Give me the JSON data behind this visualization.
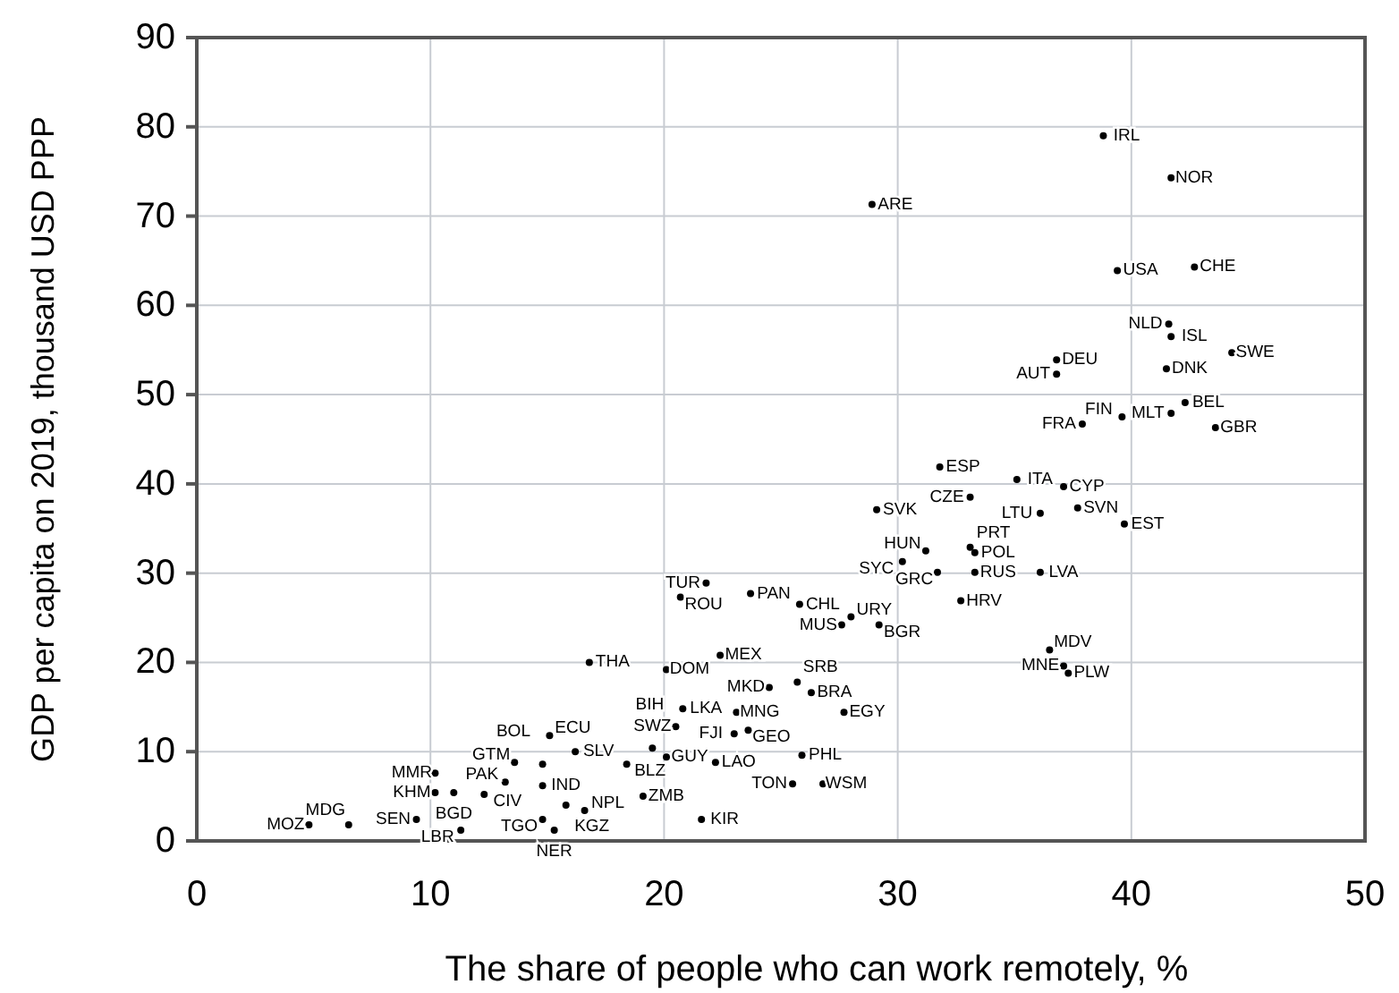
{
  "chart_data": {
    "type": "scatter",
    "xlabel": "The share of people who can work remotely, %",
    "ylabel": "GDP per capita on 2019, thousand USD PPP",
    "xlim": [
      0,
      50
    ],
    "xticks": [
      0,
      10,
      20,
      30,
      40,
      50
    ],
    "ylim": [
      0,
      90
    ],
    "yticks": [
      0,
      10,
      20,
      30,
      40,
      50,
      60,
      70,
      80,
      90
    ],
    "grid": true,
    "marker": "circle",
    "color": "#000000",
    "x": [
      38.8,
      41.7,
      28.9,
      39.4,
      42.7,
      41.6,
      41.7,
      44.3,
      41.5,
      36.8,
      36.8,
      42.3,
      41.7,
      43.6,
      39.6,
      37.9,
      31.8,
      33.1,
      35.1,
      37.1,
      36.1,
      37.7,
      39.7,
      29.1,
      31.2,
      33.1,
      33.3,
      30.2,
      31.7,
      33.3,
      36.1,
      32.7,
      37.1,
      37.3,
      36.5,
      21.8,
      20.7,
      23.7,
      25.8,
      28.0,
      27.6,
      29.2,
      16.8,
      20.1,
      22.4,
      24.5,
      25.7,
      26.3,
      20.8,
      23.1,
      27.7,
      20.5,
      23.6,
      23.0,
      15.1,
      16.2,
      13.6,
      14.8,
      18.4,
      19.5,
      20.1,
      22.2,
      25.9,
      25.5,
      26.8,
      10.2,
      13.2,
      14.8,
      10.2,
      11.0,
      12.3,
      15.8,
      19.1,
      16.6,
      9.4,
      11.3,
      14.8,
      15.3,
      4.8,
      6.5,
      21.6
    ],
    "values": [
      79.0,
      74.3,
      71.3,
      63.9,
      64.3,
      57.9,
      56.5,
      54.7,
      52.9,
      53.9,
      52.3,
      49.1,
      47.9,
      46.3,
      47.5,
      46.7,
      41.9,
      38.5,
      40.5,
      39.7,
      36.7,
      37.3,
      35.5,
      37.1,
      32.5,
      32.9,
      32.3,
      31.3,
      30.1,
      30.1,
      30.1,
      26.9,
      19.6,
      18.8,
      21.4,
      28.9,
      27.3,
      27.7,
      26.5,
      25.1,
      24.2,
      24.2,
      20.0,
      19.2,
      20.8,
      17.2,
      17.8,
      16.6,
      14.8,
      14.4,
      14.4,
      12.8,
      12.4,
      12.0,
      11.8,
      10.0,
      8.8,
      8.6,
      8.6,
      10.4,
      9.4,
      8.8,
      9.6,
      6.4,
      6.4,
      7.6,
      6.6,
      6.2,
      5.4,
      5.4,
      5.2,
      4.0,
      5.0,
      3.4,
      2.4,
      1.2,
      2.4,
      1.2,
      1.8,
      1.8,
      2.4
    ],
    "value_labels": [
      "IRL",
      "NOR",
      "ARE",
      "USA",
      "CHE",
      "NLD",
      "ISL",
      "SWE",
      "DNK",
      "DEU",
      "AUT",
      "BEL",
      "MLT",
      "GBR",
      "FIN",
      "FRA",
      "ESP",
      "CZE",
      "ITA",
      "CYP",
      "LTU",
      "SVN",
      "EST",
      "SVK",
      "HUN",
      "PRT",
      "POL",
      "SYC",
      "GRC",
      "RUS",
      "LVA",
      "HRV",
      "MNE",
      "PLW",
      "MDV",
      "TUR",
      "ROU",
      "PAN",
      "CHL",
      "URY",
      "MUS",
      "BGR",
      "THA",
      "DOM",
      "MEX",
      "MKD",
      "SRB",
      "BRA",
      "LKA",
      "MNG",
      "EGY",
      "BIH",
      "GEO",
      "FJI",
      "ECU",
      "SLV",
      "GTM",
      "BOL",
      "BLZ",
      "SWZ",
      "GUY",
      "LAO",
      "PHL",
      "TON",
      "WSM",
      "MMR",
      "PAK",
      "IND",
      "KHM",
      "BGD",
      "CIV",
      "KGZ",
      "ZMB",
      "NPL",
      "SEN",
      "LBR",
      "TGO",
      "NER",
      "MOZ",
      "MDG",
      "KIR"
    ]
  }
}
